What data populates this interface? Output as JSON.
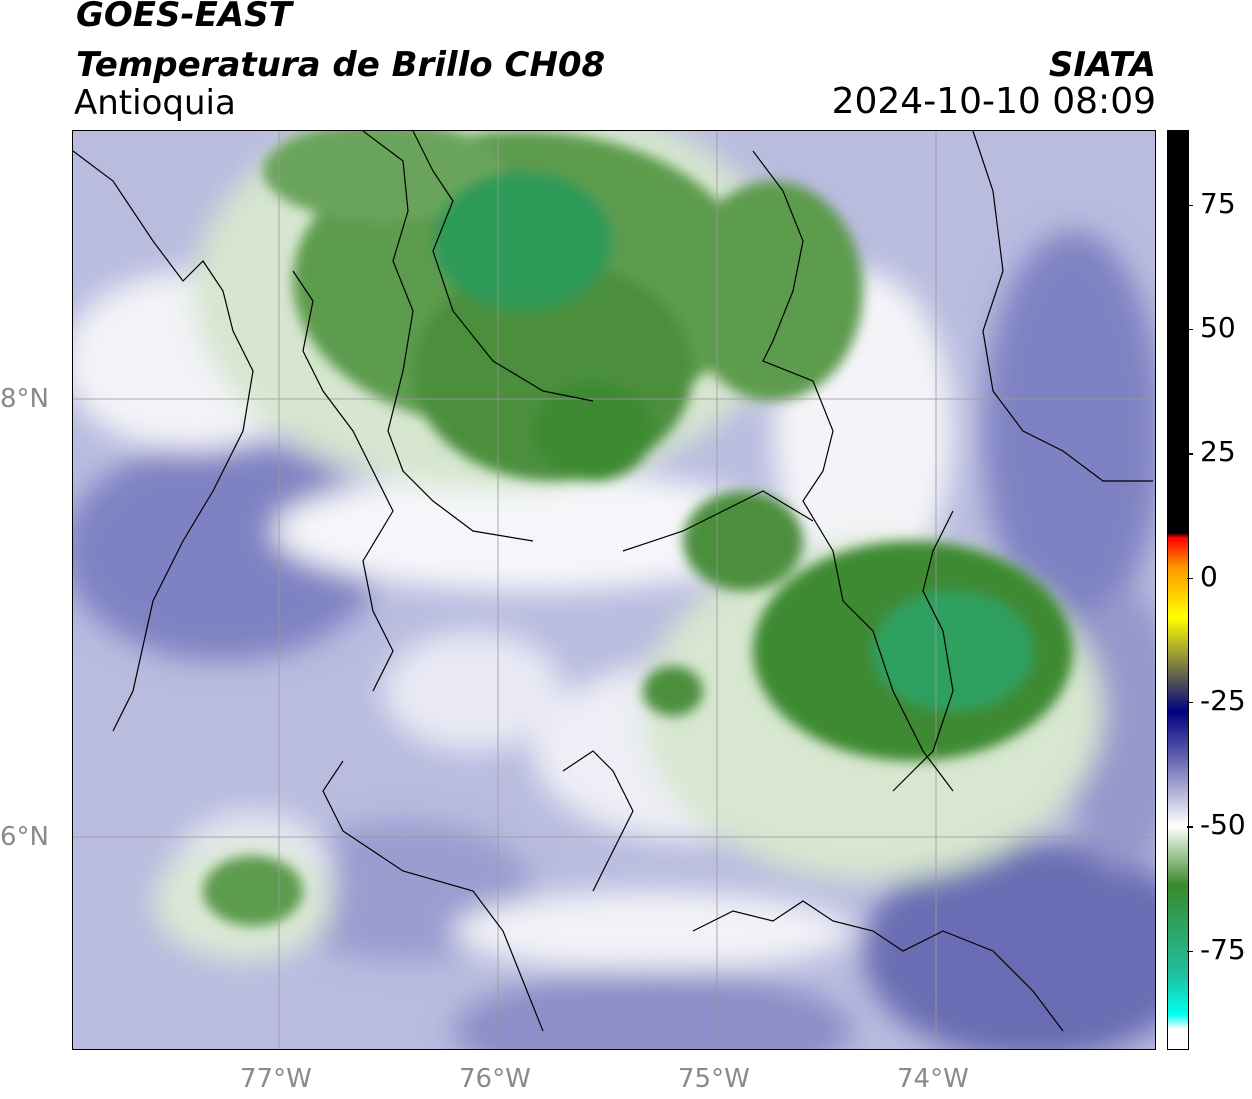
{
  "header": {
    "satellite": "GOES-EAST",
    "product": "Temperatura de Brillo CH08",
    "region": "Antioquia",
    "agency": "SIATA",
    "datetime": "2024-10-10 08:09"
  },
  "map": {
    "lon_range": [
      -77.95,
      -73.0
    ],
    "lat_range": [
      4.9,
      9.1
    ],
    "lat_ticks": [
      {
        "value": 8,
        "label": "8°N"
      },
      {
        "value": 6,
        "label": "6°N"
      }
    ],
    "lon_ticks": [
      {
        "value": -77,
        "label": "77°W"
      },
      {
        "value": -76,
        "label": "76°W"
      },
      {
        "value": -75,
        "label": "75°W"
      },
      {
        "value": -74,
        "label": "74°W"
      }
    ],
    "gridlines": true
  },
  "colorbar": {
    "min": -95,
    "max": 90,
    "ticks": [
      {
        "value": 75,
        "label": "75"
      },
      {
        "value": 50,
        "label": "50"
      },
      {
        "value": 25,
        "label": "25"
      },
      {
        "value": 0,
        "label": "0"
      },
      {
        "value": -25,
        "label": "-25"
      },
      {
        "value": -50,
        "label": "-50"
      },
      {
        "value": -75,
        "label": "-75"
      }
    ],
    "colors": {
      "black": "#000000",
      "red": "#ff0000",
      "orange": "#ff9900",
      "yellow": "#ffff00",
      "navy": "#000080",
      "lavender": "#6060b0",
      "white": "#ffffff",
      "green": "#3a8a2a",
      "teal": "#20c0a0",
      "cyan": "#00ffee"
    }
  }
}
